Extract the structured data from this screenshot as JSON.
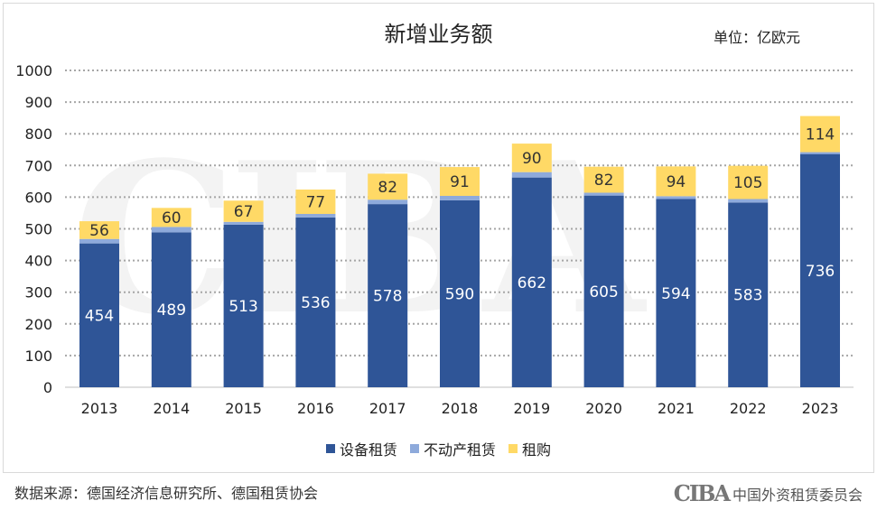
{
  "chart_data": {
    "type": "bar",
    "stacked": true,
    "title": "新增业务额",
    "unit": "单位：亿欧元",
    "categories": [
      "2013",
      "2014",
      "2015",
      "2016",
      "2017",
      "2018",
      "2019",
      "2020",
      "2021",
      "2022",
      "2023"
    ],
    "series": [
      {
        "name": "设备租赁",
        "color": "#2f5597",
        "values": [
          454,
          489,
          513,
          536,
          578,
          590,
          662,
          605,
          594,
          583,
          736
        ]
      },
      {
        "name": "不动产租赁",
        "color": "#8eaadb",
        "values": [
          14,
          17,
          9,
          11,
          14,
          14,
          17,
          9,
          9,
          11,
          6
        ]
      },
      {
        "name": "租购",
        "color": "#ffd966",
        "values": [
          56,
          60,
          67,
          77,
          82,
          91,
          90,
          82,
          94,
          105,
          114
        ]
      }
    ],
    "ylim": [
      0,
      1000
    ],
    "yticks": [
      0,
      100,
      200,
      300,
      400,
      500,
      600,
      700,
      800,
      900,
      1000
    ],
    "grid": true,
    "legend": "bottom"
  },
  "watermark": "CIBA",
  "footer": {
    "source": "数据来源：德国经济信息研究所、德国租赁协会",
    "logo": "CIBA",
    "org": "中国外资租赁委员会"
  }
}
